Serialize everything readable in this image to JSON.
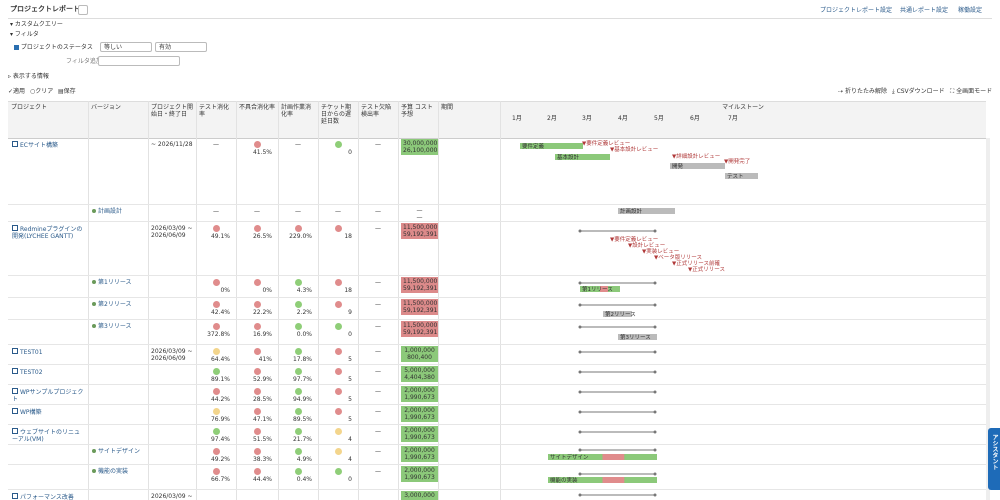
{
  "header": {
    "title": "プロジェクトレポート",
    "links": [
      "プロジェクトレポート設定",
      "共通レポート設定",
      "稼働設定"
    ]
  },
  "filters": {
    "custom_query": "カスタムクエリー",
    "filter": "フィルタ",
    "status_label": "プロジェクトのステータス",
    "operator": "等しい",
    "value": "有効",
    "add_filter": "フィルタ追加",
    "options": "表示する情報"
  },
  "actions": [
    "適用",
    "クリア",
    "保存"
  ],
  "tools": [
    "折りたたみ解除",
    "CSVダウンロード",
    "全画面モード"
  ],
  "columns": [
    "プロジェクト",
    "バージョン",
    "プロジェクト開始日・終了日",
    "テスト消化率",
    "不具合消化率",
    "計画作業消化率",
    "チケット期日からの遅延日数",
    "テスト欠陥検出率",
    "予算 コスト予想",
    "期間",
    "マイルストーン"
  ],
  "months": [
    "1月",
    "2月",
    "3月",
    "4月",
    "5月",
    "6月",
    "7月"
  ],
  "rows": [
    {
      "project": "ECサイト構築",
      "dates": [
        "~ 2026/11/28"
      ],
      "metrics": [
        {
          "text": "—"
        },
        {
          "text": "41.5%",
          "status": "red"
        },
        {
          "text": "—"
        },
        {
          "text": "0",
          "status": "green"
        },
        {
          "text": "—"
        }
      ],
      "budget": [
        "30,000,000",
        "26,100,000"
      ],
      "budget_status": "green",
      "milestones": [
        "要件定義レビュー",
        "基本設計レビュー",
        "詳細設計レビュー",
        "開発完了"
      ],
      "bars": [
        "要件定義",
        "基本設計",
        "開発",
        "テスト"
      ]
    },
    {
      "version": "計画設計",
      "metrics": [
        {
          "text": "—"
        },
        {
          "text": "—"
        },
        {
          "text": "—"
        },
        {
          "text": "—"
        },
        {
          "text": "—"
        }
      ],
      "budget": [
        "—",
        "—"
      ],
      "bars": [
        "計画設計"
      ]
    },
    {
      "project": "Redmineプラグインの開発(LYCHEE GANTT)",
      "dates": [
        "2026/03/09 ~",
        "2026/06/09"
      ],
      "metrics": [
        {
          "text": "49.1%",
          "status": "red"
        },
        {
          "text": "26.5%",
          "status": "red"
        },
        {
          "text": "229.0%",
          "status": "red"
        },
        {
          "text": "18",
          "status": "red"
        },
        {
          "text": "—"
        }
      ],
      "budget": [
        "11,500,000",
        "59,192,391"
      ],
      "budget_status": "red",
      "milestones": [
        "要件定義レビュー",
        "設計レビュー",
        "実装レビュー",
        "ベータ版リリース",
        "正式リリース前確",
        "正式リリース"
      ]
    },
    {
      "version": "第1リリース",
      "metrics": [
        {
          "text": "0%",
          "status": "red"
        },
        {
          "text": "0%",
          "status": "red"
        },
        {
          "text": "4.3%",
          "status": "green"
        },
        {
          "text": "18",
          "status": "red"
        },
        {
          "text": "—"
        }
      ],
      "budget": [
        "11,500,000",
        "59,192,391"
      ],
      "budget_status": "red",
      "bars": [
        "第1リリース"
      ]
    },
    {
      "version": "第2リリース",
      "metrics": [
        {
          "text": "42.4%",
          "status": "red"
        },
        {
          "text": "22.2%",
          "status": "red"
        },
        {
          "text": "2.2%",
          "status": "green"
        },
        {
          "text": "9",
          "status": "red"
        },
        {
          "text": "—"
        }
      ],
      "budget": [
        "11,500,000",
        "59,192,391"
      ],
      "budget_status": "red",
      "bars": [
        "第2リリース"
      ]
    },
    {
      "version": "第3リリース",
      "metrics": [
        {
          "text": "372.8%",
          "status": "red"
        },
        {
          "text": "16.9%",
          "status": "red"
        },
        {
          "text": "0.0%",
          "status": "green"
        },
        {
          "text": "0",
          "status": "green"
        },
        {
          "text": "—"
        }
      ],
      "budget": [
        "11,500,000",
        "59,192,391"
      ],
      "budget_status": "red",
      "bars": [
        "第3リリース"
      ]
    },
    {
      "project": "TEST01",
      "dates": [
        "2026/03/09 ~",
        "2026/06/09"
      ],
      "metrics": [
        {
          "text": "64.4%",
          "status": "yellow"
        },
        {
          "text": "41%",
          "status": "red"
        },
        {
          "text": "17.8%",
          "status": "green"
        },
        {
          "text": "5",
          "status": "red"
        },
        {
          "text": "—"
        }
      ],
      "budget": [
        "1,000,000",
        "800,400"
      ],
      "budget_status": "green"
    },
    {
      "project": "TEST02",
      "metrics": [
        {
          "text": "89.1%",
          "status": "green"
        },
        {
          "text": "52.9%",
          "status": "red"
        },
        {
          "text": "97.7%",
          "status": "green"
        },
        {
          "text": "5",
          "status": "red"
        },
        {
          "text": "—"
        }
      ],
      "budget": [
        "5,000,000",
        "4,404,380"
      ],
      "budget_status": "green"
    },
    {
      "project": "WPサンプルプロジェクト",
      "metrics": [
        {
          "text": "44.2%",
          "status": "red"
        },
        {
          "text": "28.5%",
          "status": "red"
        },
        {
          "text": "94.9%",
          "status": "green"
        },
        {
          "text": "5",
          "status": "red"
        },
        {
          "text": "—"
        }
      ],
      "budget": [
        "2,000,000",
        "1,990,673"
      ],
      "budget_status": "green"
    },
    {
      "project": "WP構築",
      "metrics": [
        {
          "text": "76.9%",
          "status": "yellow"
        },
        {
          "text": "47.1%",
          "status": "red"
        },
        {
          "text": "89.5%",
          "status": "green"
        },
        {
          "text": "5",
          "status": "red"
        },
        {
          "text": "—"
        }
      ],
      "budget": [
        "2,000,000",
        "1,990,673"
      ],
      "budget_status": "green"
    },
    {
      "project": "ウェブサイトのリニューアル(VM)",
      "metrics": [
        {
          "text": "97.4%",
          "status": "green"
        },
        {
          "text": "51.5%",
          "status": "red"
        },
        {
          "text": "21.7%",
          "status": "green"
        },
        {
          "text": "4",
          "status": "yellow"
        },
        {
          "text": "—"
        }
      ],
      "budget": [
        "2,000,000",
        "1,990,673"
      ],
      "budget_status": "green"
    },
    {
      "version": "サイトデザイン",
      "metrics": [
        {
          "text": "49.2%",
          "status": "red"
        },
        {
          "text": "38.3%",
          "status": "red"
        },
        {
          "text": "4.9%",
          "status": "green"
        },
        {
          "text": "4",
          "status": "yellow"
        },
        {
          "text": "—"
        }
      ],
      "budget": [
        "2,000,000",
        "1,990,673"
      ],
      "budget_status": "green",
      "bars": [
        "サイトデザイン"
      ]
    },
    {
      "version": "機能の実装",
      "metrics": [
        {
          "text": "66.7%",
          "status": "red"
        },
        {
          "text": "44.4%",
          "status": "red"
        },
        {
          "text": "0.4%",
          "status": "green"
        },
        {
          "text": "0",
          "status": "green"
        },
        {
          "text": "—"
        }
      ],
      "budget": [
        "2,000,000",
        "1,990,673"
      ],
      "budget_status": "green",
      "bars": [
        "機能の実装"
      ]
    },
    {
      "project": "パフォーマンス改善",
      "dates": [
        "2026/03/09 ~"
      ],
      "budget": [
        "3,000,000"
      ],
      "budget_status": "green"
    }
  ],
  "assistant": "アシスタント"
}
